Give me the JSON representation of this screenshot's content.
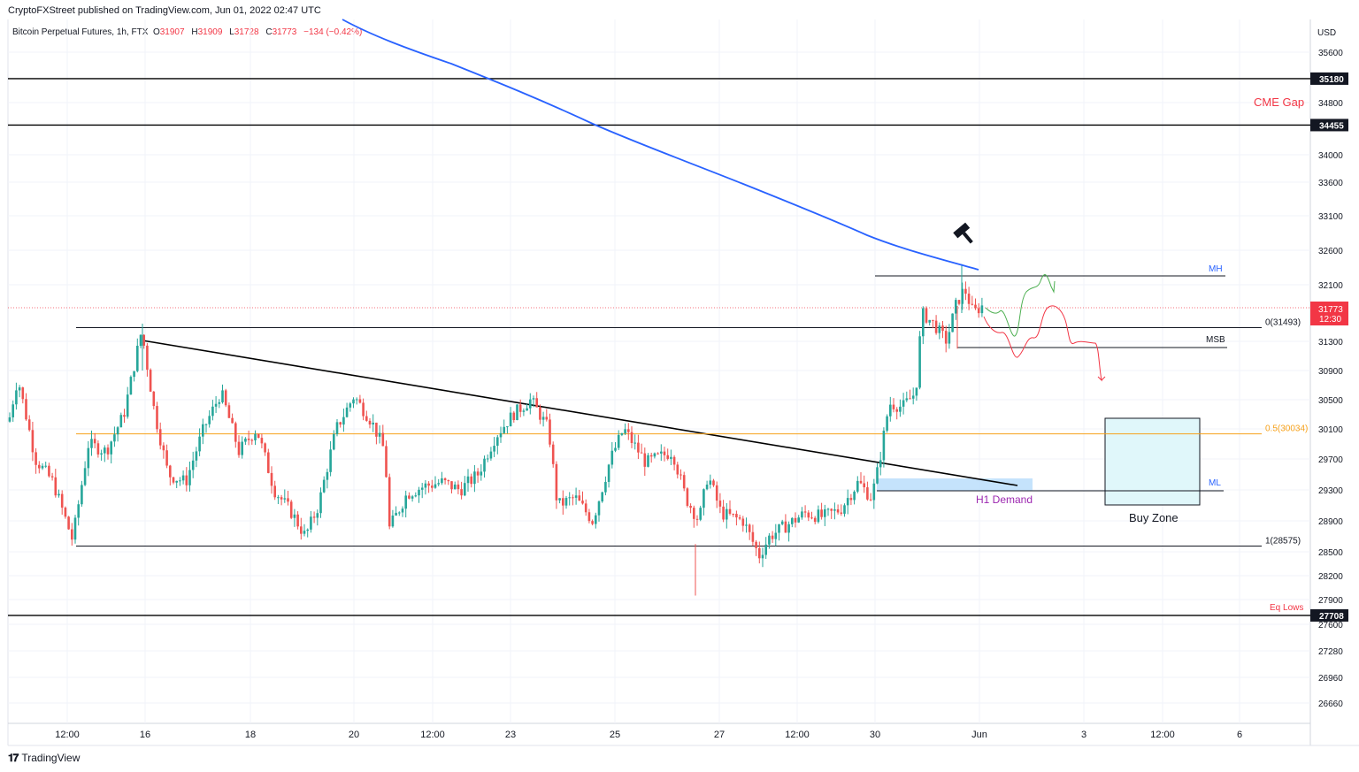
{
  "header": {
    "published": "CryptoFXStreet published on TradingView.com, Jun 01, 2022 02:47 UTC"
  },
  "symbol": {
    "name": "Bitcoin Perpetual Futures, 1h, FTX",
    "open_label": "O",
    "open": "31907",
    "high_label": "H",
    "high": "31909",
    "low_label": "L",
    "low": "31728",
    "close_label": "C",
    "close": "31773",
    "change": "−134 (−0.42%)"
  },
  "footer": {
    "brand": "TradingView"
  },
  "chart_data": {
    "type": "candlestick",
    "currency": "USD",
    "ylim": [
      26400,
      35950
    ],
    "y_ticks": [
      35600,
      34800,
      34000,
      33600,
      33100,
      32600,
      32100,
      31300,
      30900,
      30500,
      30100,
      29700,
      29300,
      28900,
      28500,
      28200,
      27900,
      27600,
      27280,
      26960,
      26660
    ],
    "x_ticks": [
      "12:00",
      "16",
      "18",
      "20",
      "12:00",
      "23",
      "25",
      "27",
      "12:00",
      "30",
      "Jun",
      "3",
      "12:00",
      "6"
    ],
    "last_price": {
      "value": "31773",
      "countdown": "12:30",
      "color": "#f23645"
    },
    "levels": [
      {
        "label": "35180",
        "value": 35180,
        "color": "#000000"
      },
      {
        "label": "34455",
        "value": 34455,
        "color": "#000000"
      },
      {
        "label": "27708",
        "value": 27708,
        "color": "#000000"
      }
    ],
    "fib_levels": [
      {
        "label": "0(31493)",
        "value": 31493,
        "color": "#131722"
      },
      {
        "label": "0.5(30034)",
        "value": 30034,
        "color": "#f7a21b"
      },
      {
        "label": "1(28575)",
        "value": 28575,
        "color": "#131722"
      }
    ],
    "annotations": {
      "cme_gap": "CME Gap",
      "mh": "MH",
      "msb": "MSB",
      "ml": "ML",
      "h1_demand": "H1 Demand",
      "buy_zone": "Buy Zone",
      "eq_lows": "Eq Lows"
    },
    "moving_average": {
      "color": "#2962ff",
      "values_start": 36000,
      "values_end": 32340
    },
    "trendline": {
      "from": 31350,
      "to": 29350
    },
    "colors": {
      "up": "#26a69a",
      "down": "#ef5350",
      "buy_zone": "#e0f7fa",
      "demand": "#bbdefb"
    }
  }
}
